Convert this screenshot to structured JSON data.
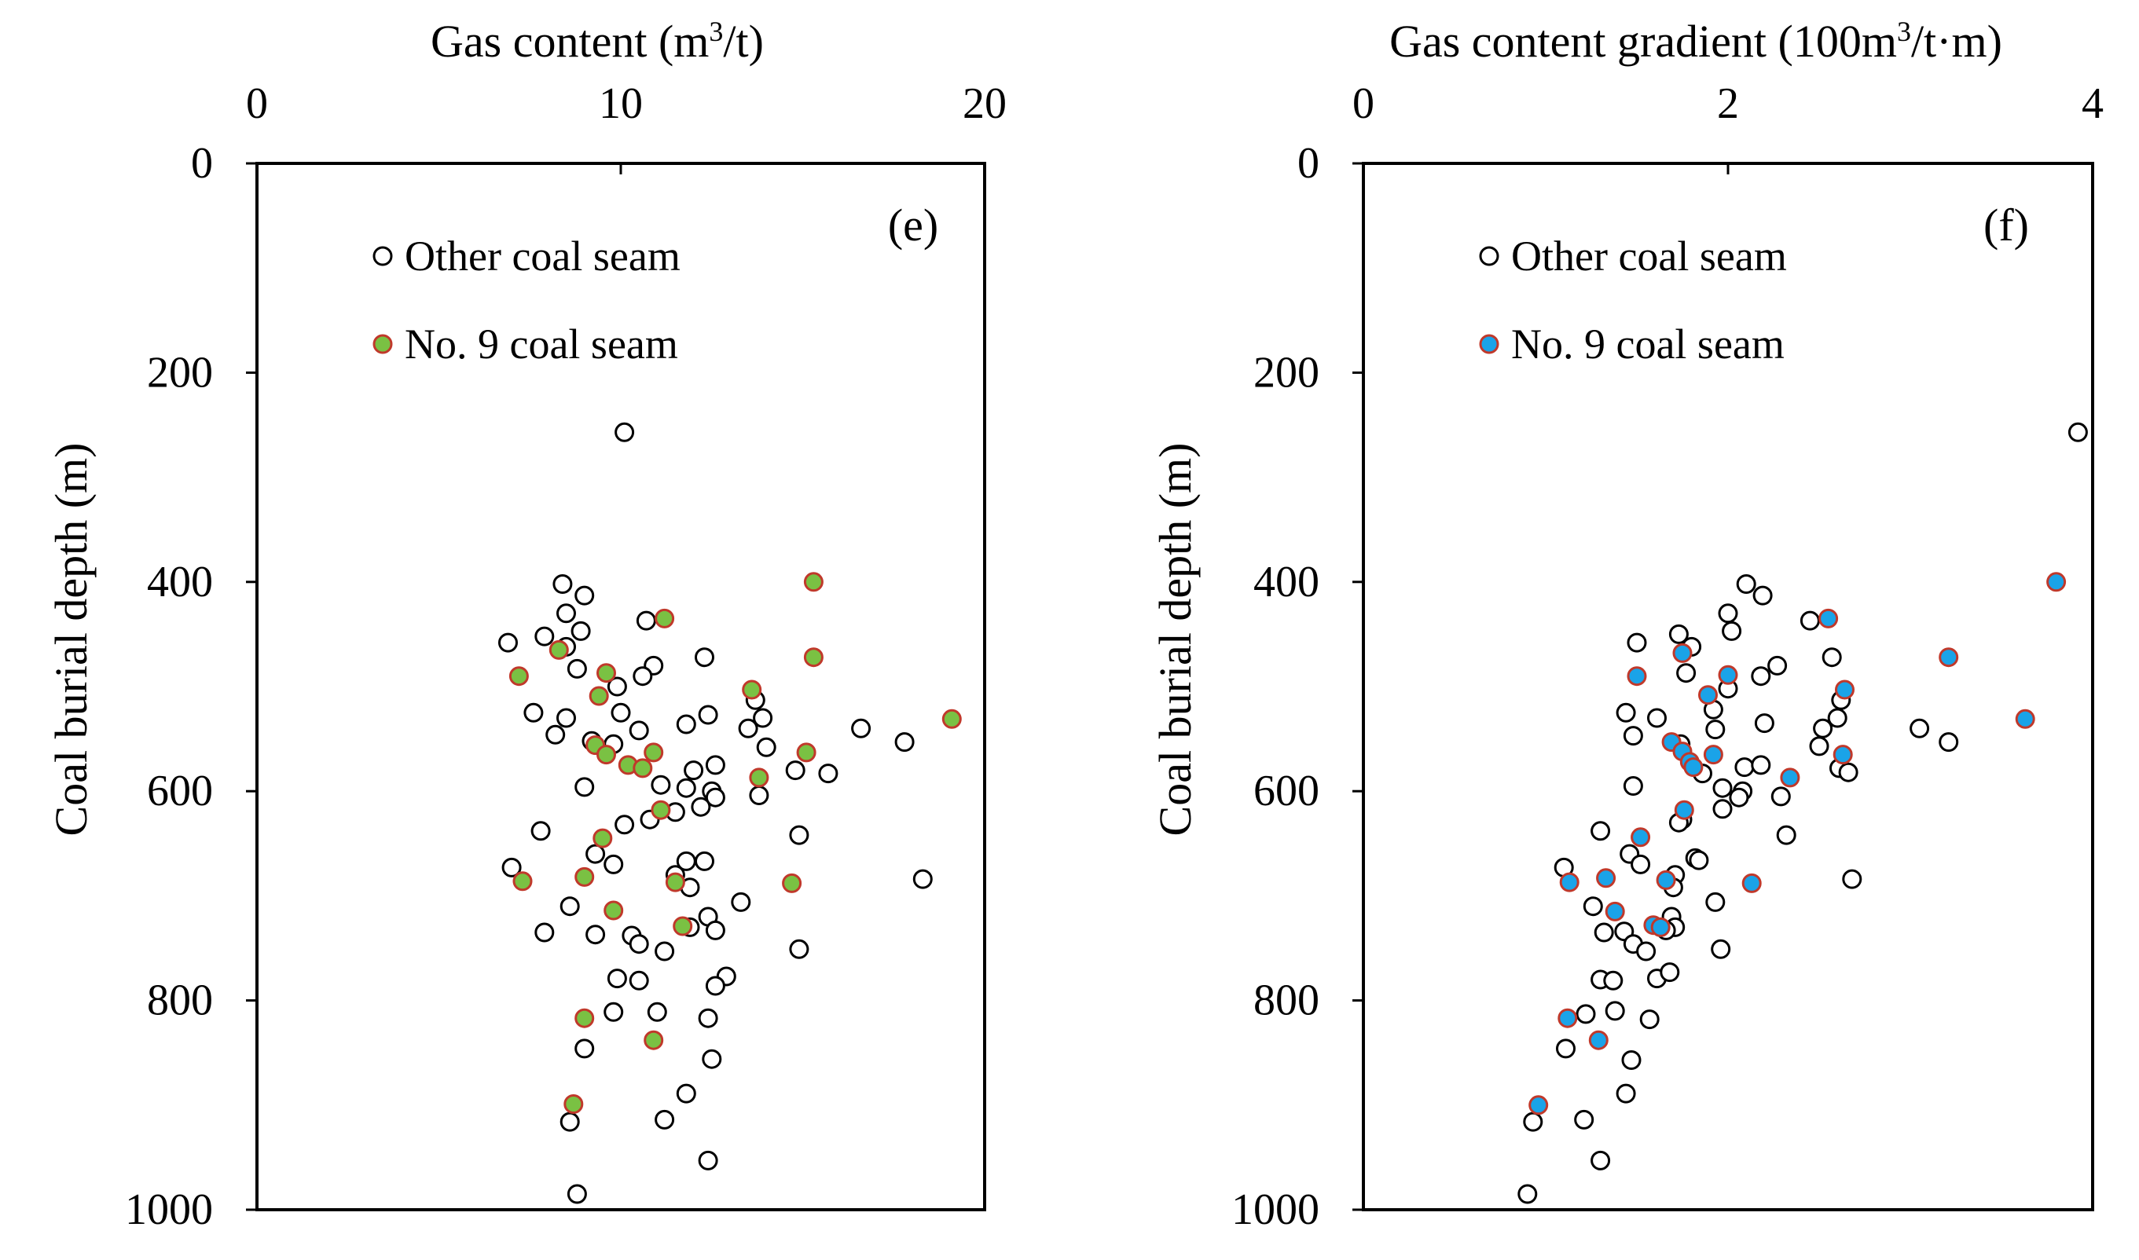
{
  "chart_data": [
    {
      "type": "scatter",
      "panel_label": "(e)",
      "title": "",
      "xlabel": "Gas content (m³/t)",
      "xlabel_main": "Gas content (m",
      "xlabel_sup": "3",
      "xlabel_tail": "/t)",
      "ylabel": "Coal burial depth (m)",
      "xlim": [
        0,
        20
      ],
      "ylim": [
        0,
        1000
      ],
      "y_inverted": true,
      "x_axis_position": "top",
      "xticks": [
        0,
        10,
        20
      ],
      "yticks": [
        0,
        200,
        400,
        600,
        800,
        1000
      ],
      "grid": false,
      "legend_position": "top-left",
      "series": [
        {
          "name": "Other coal seam",
          "marker": "hollow-circle",
          "edge_color": "#000000",
          "fill_color": "#ffffff",
          "points": [
            [
              10.1,
              257
            ],
            [
              8.4,
              402
            ],
            [
              9.0,
              413
            ],
            [
              8.5,
              430
            ],
            [
              10.7,
              437
            ],
            [
              8.9,
              447
            ],
            [
              6.9,
              458
            ],
            [
              7.9,
              452
            ],
            [
              8.5,
              462
            ],
            [
              12.3,
              472
            ],
            [
              10.9,
              480
            ],
            [
              8.8,
              483
            ],
            [
              10.6,
              490
            ],
            [
              9.9,
              500
            ],
            [
              13.7,
              513
            ],
            [
              10.0,
              525
            ],
            [
              7.6,
              525
            ],
            [
              8.5,
              530
            ],
            [
              13.9,
              530
            ],
            [
              12.4,
              527
            ],
            [
              8.2,
              546
            ],
            [
              10.5,
              542
            ],
            [
              11.8,
              536
            ],
            [
              13.5,
              540
            ],
            [
              16.6,
              540
            ],
            [
              17.8,
              553
            ],
            [
              9.2,
              552
            ],
            [
              9.8,
              555
            ],
            [
              14.0,
              558
            ],
            [
              12.6,
              575
            ],
            [
              14.8,
              580
            ],
            [
              15.7,
              583
            ],
            [
              12.0,
              580
            ],
            [
              11.1,
              594
            ],
            [
              11.8,
              597
            ],
            [
              12.5,
              600
            ],
            [
              9.0,
              596
            ],
            [
              12.6,
              606
            ],
            [
              13.8,
              604
            ],
            [
              12.2,
              615
            ],
            [
              11.5,
              620
            ],
            [
              10.8,
              627
            ],
            [
              10.1,
              632
            ],
            [
              14.9,
              642
            ],
            [
              7.8,
              638
            ],
            [
              9.3,
              660
            ],
            [
              11.8,
              667
            ],
            [
              12.3,
              667
            ],
            [
              9.8,
              670
            ],
            [
              7.0,
              673
            ],
            [
              11.5,
              680
            ],
            [
              18.3,
              684
            ],
            [
              11.9,
              692
            ],
            [
              8.6,
              710
            ],
            [
              13.3,
              706
            ],
            [
              12.4,
              720
            ],
            [
              11.9,
              730
            ],
            [
              12.6,
              733
            ],
            [
              7.9,
              735
            ],
            [
              10.3,
              738
            ],
            [
              9.3,
              737
            ],
            [
              10.5,
              746
            ],
            [
              11.2,
              753
            ],
            [
              14.9,
              751
            ],
            [
              9.9,
              779
            ],
            [
              10.5,
              781
            ],
            [
              12.9,
              777
            ],
            [
              12.6,
              786
            ],
            [
              9.8,
              811
            ],
            [
              11.0,
              811
            ],
            [
              12.4,
              817
            ],
            [
              9.0,
              846
            ],
            [
              12.5,
              856
            ],
            [
              11.8,
              889
            ],
            [
              8.6,
              916
            ],
            [
              11.2,
              914
            ],
            [
              12.4,
              953
            ],
            [
              8.8,
              985
            ]
          ]
        },
        {
          "name": "No. 9 coal seam",
          "marker": "filled-circle",
          "edge_color": "#c0392b",
          "fill_color": "#7ac143",
          "points": [
            [
              15.3,
              400
            ],
            [
              11.2,
              435
            ],
            [
              8.3,
              465
            ],
            [
              15.3,
              472
            ],
            [
              7.2,
              490
            ],
            [
              9.6,
              487
            ],
            [
              9.4,
              509
            ],
            [
              13.6,
              503
            ],
            [
              19.1,
              531
            ],
            [
              9.3,
              556
            ],
            [
              9.6,
              565
            ],
            [
              10.9,
              563
            ],
            [
              15.1,
              563
            ],
            [
              10.2,
              575
            ],
            [
              10.6,
              578
            ],
            [
              13.8,
              587
            ],
            [
              11.1,
              618
            ],
            [
              9.5,
              645
            ],
            [
              9.0,
              682
            ],
            [
              11.5,
              687
            ],
            [
              14.7,
              688
            ],
            [
              7.3,
              686
            ],
            [
              9.8,
              714
            ],
            [
              11.7,
              729
            ],
            [
              9.0,
              817
            ],
            [
              10.9,
              838
            ],
            [
              8.7,
              899
            ]
          ]
        }
      ]
    },
    {
      "type": "scatter",
      "panel_label": "(f)",
      "title": "",
      "xlabel": "Gas content gradient (100m³/t·m)",
      "xlabel_main": "Gas content gradient (100m",
      "xlabel_sup": "3",
      "xlabel_tail": "/t·m)",
      "ylabel": "Coal burial depth (m)",
      "xlim": [
        0,
        4
      ],
      "ylim": [
        0,
        1000
      ],
      "y_inverted": true,
      "x_axis_position": "top",
      "xticks": [
        0,
        2,
        4
      ],
      "yticks": [
        0,
        200,
        400,
        600,
        800,
        1000
      ],
      "grid": false,
      "legend_position": "top-left",
      "series": [
        {
          "name": "Other coal seam",
          "marker": "hollow-circle",
          "edge_color": "#000000",
          "fill_color": "#ffffff",
          "points": [
            [
              3.92,
              257
            ],
            [
              2.1,
              402
            ],
            [
              2.19,
              413
            ],
            [
              2.0,
              430
            ],
            [
              2.45,
              437
            ],
            [
              1.73,
              450
            ],
            [
              2.02,
              447
            ],
            [
              1.5,
              458
            ],
            [
              1.8,
              462
            ],
            [
              2.57,
              472
            ],
            [
              2.27,
              480
            ],
            [
              1.77,
              487
            ],
            [
              2.18,
              490
            ],
            [
              2.0,
              502
            ],
            [
              2.62,
              513
            ],
            [
              1.92,
              522
            ],
            [
              1.44,
              525
            ],
            [
              1.61,
              530
            ],
            [
              2.6,
              530
            ],
            [
              2.52,
              540
            ],
            [
              3.05,
              540
            ],
            [
              1.93,
              541
            ],
            [
              2.2,
              535
            ],
            [
              3.21,
              553
            ],
            [
              1.48,
              547
            ],
            [
              1.74,
              555
            ],
            [
              2.5,
              557
            ],
            [
              2.61,
              578
            ],
            [
              2.09,
              577
            ],
            [
              2.18,
              575
            ],
            [
              1.86,
              583
            ],
            [
              2.66,
              582
            ],
            [
              1.97,
              597
            ],
            [
              2.08,
              600
            ],
            [
              1.48,
              595
            ],
            [
              2.06,
              606
            ],
            [
              2.29,
              605
            ],
            [
              1.97,
              617
            ],
            [
              1.75,
              627
            ],
            [
              1.73,
              630
            ],
            [
              2.32,
              642
            ],
            [
              1.3,
              638
            ],
            [
              1.46,
              660
            ],
            [
              1.82,
              664
            ],
            [
              1.84,
              666
            ],
            [
              1.52,
              670
            ],
            [
              1.1,
              673
            ],
            [
              1.71,
              680
            ],
            [
              2.68,
              684
            ],
            [
              1.7,
              692
            ],
            [
              1.26,
              710
            ],
            [
              1.93,
              706
            ],
            [
              1.69,
              720
            ],
            [
              1.71,
              730
            ],
            [
              1.66,
              733
            ],
            [
              1.32,
              735
            ],
            [
              1.43,
              734
            ],
            [
              1.48,
              746
            ],
            [
              1.55,
              753
            ],
            [
              1.96,
              751
            ],
            [
              1.61,
              779
            ],
            [
              1.68,
              773
            ],
            [
              1.3,
              780
            ],
            [
              1.37,
              781
            ],
            [
              1.38,
              810
            ],
            [
              1.22,
              813
            ],
            [
              1.57,
              818
            ],
            [
              1.11,
              846
            ],
            [
              1.47,
              857
            ],
            [
              1.44,
              889
            ],
            [
              0.93,
              916
            ],
            [
              1.21,
              914
            ],
            [
              1.3,
              953
            ],
            [
              0.9,
              985
            ]
          ]
        },
        {
          "name": "No. 9 coal seam",
          "marker": "filled-circle",
          "edge_color": "#c0392b",
          "fill_color": "#1aa3e8",
          "points": [
            [
              3.8,
              400
            ],
            [
              2.55,
              435
            ],
            [
              1.75,
              468
            ],
            [
              3.21,
              472
            ],
            [
              1.5,
              490
            ],
            [
              2.0,
              489
            ],
            [
              1.89,
              508
            ],
            [
              2.64,
              503
            ],
            [
              3.63,
              531
            ],
            [
              1.69,
              553
            ],
            [
              1.75,
              562
            ],
            [
              1.92,
              565
            ],
            [
              2.63,
              565
            ],
            [
              1.79,
              572
            ],
            [
              1.81,
              577
            ],
            [
              2.34,
              587
            ],
            [
              1.76,
              618
            ],
            [
              1.52,
              644
            ],
            [
              1.66,
              685
            ],
            [
              2.13,
              688
            ],
            [
              1.13,
              687
            ],
            [
              1.33,
              683
            ],
            [
              1.38,
              715
            ],
            [
              1.59,
              728
            ],
            [
              1.63,
              730
            ],
            [
              1.12,
              817
            ],
            [
              1.29,
              838
            ],
            [
              0.96,
              900
            ]
          ]
        }
      ]
    }
  ]
}
